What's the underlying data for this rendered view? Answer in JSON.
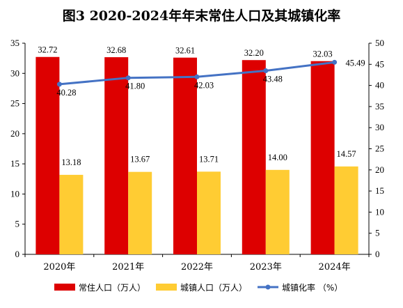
{
  "chart_data": {
    "type": "bar",
    "title": "图3  2020-2024年年末常住人口及其城镇化率",
    "categories": [
      "2020年",
      "2021年",
      "2022年",
      "2023年",
      "2024年"
    ],
    "series": [
      {
        "name": "常住人口（万人）",
        "type": "bar",
        "axis": "left",
        "color": "#dd0000",
        "values": [
          32.72,
          32.68,
          32.61,
          32.2,
          32.03
        ],
        "labels": [
          "32.72",
          "32.68",
          "32.61",
          "32.20",
          "32.03"
        ]
      },
      {
        "name": "城镇人口（万人）",
        "type": "bar",
        "axis": "left",
        "color": "#ffcc33",
        "values": [
          13.18,
          13.67,
          13.71,
          14.0,
          14.57
        ],
        "labels": [
          "13.18",
          "13.67",
          "13.71",
          "14.00",
          "14.57"
        ]
      },
      {
        "name": "城镇化率 （%）",
        "type": "line",
        "axis": "right",
        "color": "#4472c4",
        "values": [
          40.28,
          41.8,
          42.03,
          43.48,
          45.49
        ],
        "labels": [
          "40.28",
          "41.80",
          "42.03",
          "43.48",
          "45.49"
        ]
      }
    ],
    "y_left": {
      "min": 0,
      "max": 35,
      "step": 5,
      "ticks": [
        "0",
        "5",
        "10",
        "15",
        "20",
        "25",
        "30",
        "35"
      ]
    },
    "y_right": {
      "min": 0,
      "max": 50,
      "step": 5,
      "ticks": [
        "0",
        "5",
        "10",
        "15",
        "20",
        "25",
        "30",
        "35",
        "40",
        "45",
        "50"
      ]
    },
    "grid": false,
    "legend_position": "bottom"
  }
}
